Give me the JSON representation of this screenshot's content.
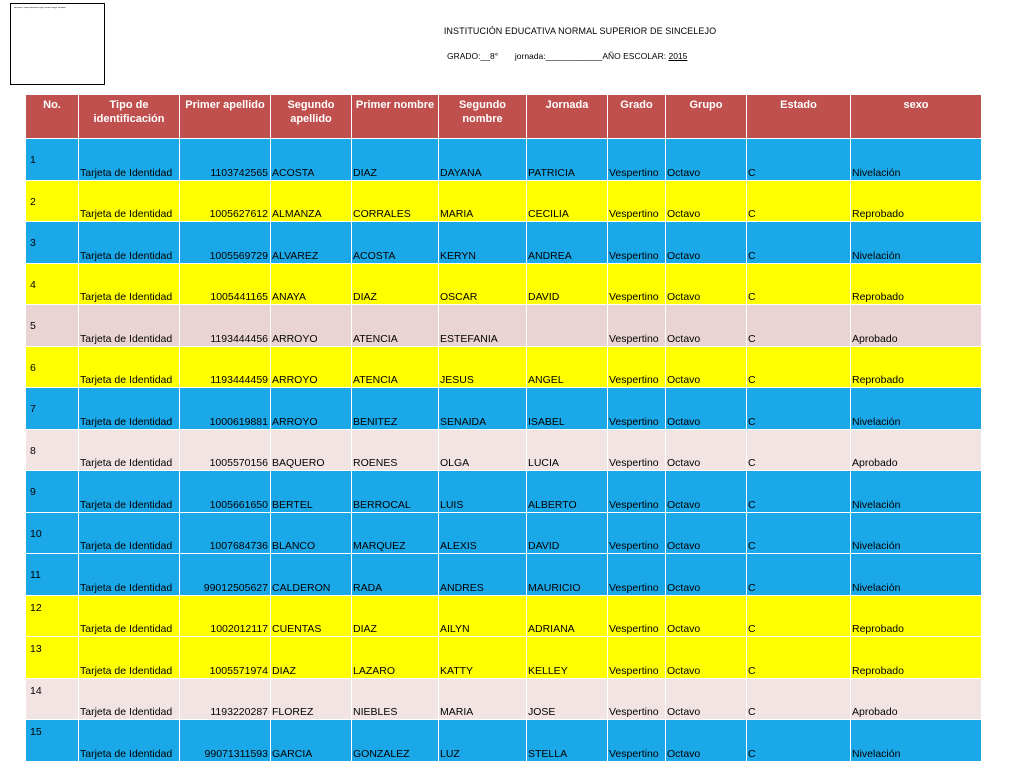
{
  "header": {
    "logo_caption": "Microsoft, Clipart Education Logo, Vector Design Template",
    "title": "INSTITUCIÓN EDUCATIVA NORMAL SUPERIOR DE SINCELEJO",
    "grado_label": "GRADO:__8°",
    "jornada_label": "jornada:____________AÑO ESCOLAR:",
    "year": "2015"
  },
  "table": {
    "columns": [
      "No.",
      "Tipo de identificación",
      "Primer apellido",
      "Segundo apellido",
      "Primer nombre",
      "Segundo nombre",
      "Jornada",
      "Grado",
      "Grupo",
      "Estado",
      "sexo"
    ],
    "rows": [
      {
        "no": "1",
        "tipo": "Tarjeta de Identidad",
        "id": "1103742565",
        "apellido1": "ACOSTA",
        "apellido2": "DIAZ",
        "nombre1": "DAYANA",
        "nombre2": "PATRICIA",
        "jornada": "Vespertino",
        "grado": "Octavo",
        "grupo": "C",
        "estado": "Nivelación"
      },
      {
        "no": "2",
        "tipo": "Tarjeta de Identidad",
        "id": "1005627612",
        "apellido1": "ALMANZA",
        "apellido2": "CORRALES",
        "nombre1": "MARIA",
        "nombre2": "CECILIA",
        "jornada": "Vespertino",
        "grado": "Octavo",
        "grupo": "C",
        "estado": "Reprobado"
      },
      {
        "no": "3",
        "tipo": "Tarjeta de Identidad",
        "id": "1005569729",
        "apellido1": "ALVAREZ",
        "apellido2": "ACOSTA",
        "nombre1": "KERYN",
        "nombre2": "ANDREA",
        "jornada": "Vespertino",
        "grado": "Octavo",
        "grupo": "C",
        "estado": "Nivelación"
      },
      {
        "no": "4",
        "tipo": "Tarjeta de Identidad",
        "id": "1005441165",
        "apellido1": "ANAYA",
        "apellido2": "DIAZ",
        "nombre1": "OSCAR",
        "nombre2": "DAVID",
        "jornada": "Vespertino",
        "grado": "Octavo",
        "grupo": "C",
        "estado": "Reprobado"
      },
      {
        "no": "5",
        "tipo": "Tarjeta de Identidad",
        "id": "1193444456",
        "apellido1": "ARROYO",
        "apellido2": "ATENCIA",
        "nombre1": "ESTEFANIA",
        "nombre2": "",
        "jornada": "Vespertino",
        "grado": "Octavo",
        "grupo": "C",
        "estado": "Aprobado"
      },
      {
        "no": "6",
        "tipo": "Tarjeta de Identidad",
        "id": "1193444459",
        "apellido1": "ARROYO",
        "apellido2": "ATENCIA",
        "nombre1": "JESUS",
        "nombre2": "ANGEL",
        "jornada": "Vespertino",
        "grado": "Octavo",
        "grupo": "C",
        "estado": "Reprobado"
      },
      {
        "no": "7",
        "tipo": "Tarjeta de Identidad",
        "id": "1000619881",
        "apellido1": "ARROYO",
        "apellido2": "BENITEZ",
        "nombre1": "SENAIDA",
        "nombre2": "ISABEL",
        "jornada": "Vespertino",
        "grado": "Octavo",
        "grupo": "C",
        "estado": "Nivelación"
      },
      {
        "no": "8",
        "tipo": "Tarjeta de Identidad",
        "id": "1005570156",
        "apellido1": "BAQUERO",
        "apellido2": "ROENES",
        "nombre1": "OLGA",
        "nombre2": "LUCIA",
        "jornada": "Vespertino",
        "grado": "Octavo",
        "grupo": "C",
        "estado": "Aprobado"
      },
      {
        "no": "9",
        "tipo": "Tarjeta de Identidad",
        "id": "1005661650",
        "apellido1": "BERTEL",
        "apellido2": "BERROCAL",
        "nombre1": "LUIS",
        "nombre2": "ALBERTO",
        "jornada": "Vespertino",
        "grado": "Octavo",
        "grupo": "C",
        "estado": "Nivelación"
      },
      {
        "no": "10",
        "tipo": "Tarjeta de Identidad",
        "id": "1007684736",
        "apellido1": "BLANCO",
        "apellido2": "MARQUEZ",
        "nombre1": "ALEXIS",
        "nombre2": "DAVID",
        "jornada": "Vespertino",
        "grado": "Octavo",
        "grupo": "C",
        "estado": "Nivelación"
      },
      {
        "no": "11",
        "tipo": "Tarjeta de Identidad",
        "id": "99012505627",
        "apellido1": "CALDERON",
        "apellido2": "RADA",
        "nombre1": "ANDRES",
        "nombre2": "MAURICIO",
        "jornada": "Vespertino",
        "grado": "Octavo",
        "grupo": "C",
        "estado": "Nivelación"
      },
      {
        "no": "12",
        "tipo": "Tarjeta de Identidad",
        "id": "1002012117",
        "apellido1": "CUENTAS",
        "apellido2": "DIAZ",
        "nombre1": "AILYN",
        "nombre2": "ADRIANA",
        "jornada": "Vespertino",
        "grado": "Octavo",
        "grupo": "C",
        "estado": "Reprobado"
      },
      {
        "no": "13",
        "tipo": "Tarjeta de Identidad",
        "id": "1005571974",
        "apellido1": "DIAZ",
        "apellido2": "LAZARO",
        "nombre1": "KATTY",
        "nombre2": "KELLEY",
        "jornada": "Vespertino",
        "grado": "Octavo",
        "grupo": "C",
        "estado": "Reprobado"
      },
      {
        "no": "14",
        "tipo": "Tarjeta de Identidad",
        "id": "1193220287",
        "apellido1": "FLOREZ",
        "apellido2": "NIEBLES",
        "nombre1": "MARIA",
        "nombre2": "JOSE",
        "jornada": "Vespertino",
        "grado": "Octavo",
        "grupo": "C",
        "estado": "Aprobado"
      },
      {
        "no": "15",
        "tipo": "Tarjeta de Identidad",
        "id": "99071311593",
        "apellido1": "GARCIA",
        "apellido2": "GONZALEZ",
        "nombre1": "LUZ",
        "nombre2": "STELLA",
        "jornada": "Vespertino",
        "grado": "Octavo",
        "grupo": "C",
        "estado": "Nivelación"
      }
    ]
  }
}
